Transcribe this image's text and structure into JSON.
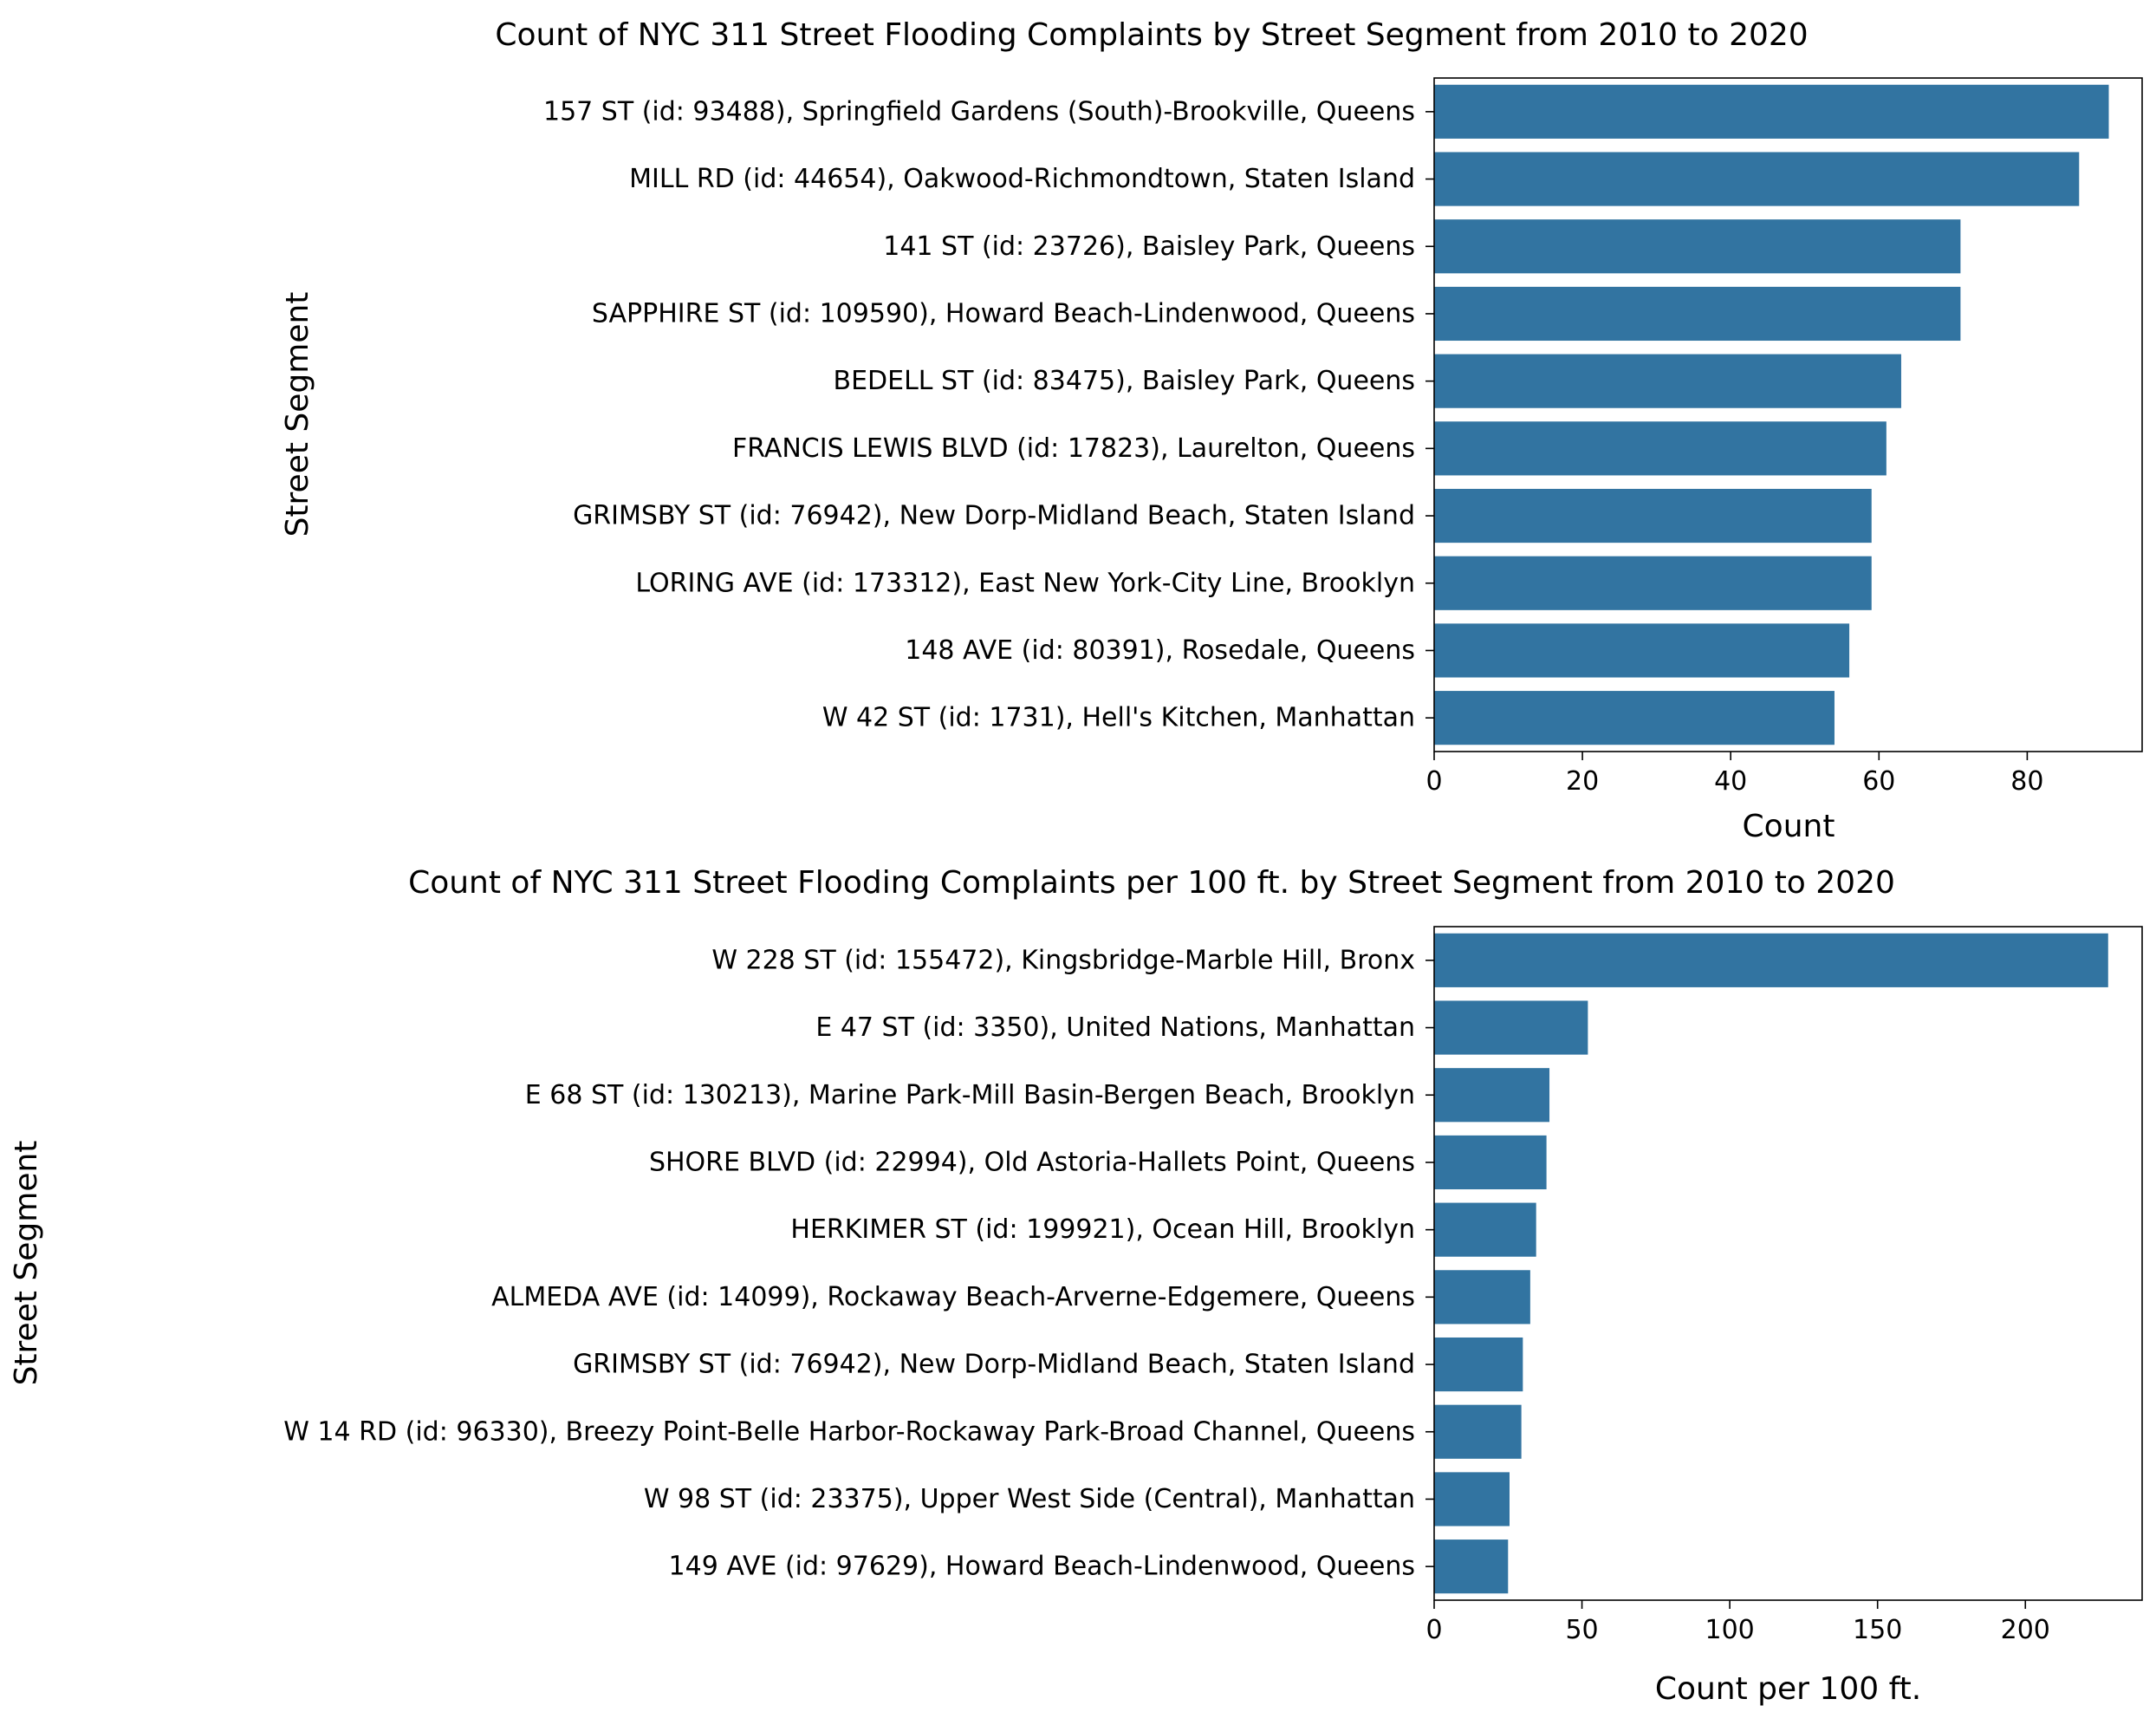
{
  "chart_data": [
    {
      "type": "bar",
      "orientation": "horizontal",
      "title": "Count of NYC 311 Street Flooding Complaints by Street Segment from 2010 to 2020",
      "xlabel": "Count",
      "ylabel": "Street Segment",
      "xlim": [
        0,
        95.5
      ],
      "xticks": [
        0,
        20,
        40,
        60,
        80
      ],
      "grid": false,
      "color": "#3274a1",
      "categories": [
        "157 ST (id: 93488), Springfield Gardens (South)-Brookville, Queens",
        "MILL RD (id: 44654), Oakwood-Richmondtown, Staten Island",
        "141 ST (id: 23726), Baisley Park, Queens",
        "SAPPHIRE ST (id: 109590), Howard Beach-Lindenwood, Queens",
        "BEDELL ST (id: 83475), Baisley Park, Queens",
        "FRANCIS LEWIS BLVD (id: 17823), Laurelton, Queens",
        "GRIMSBY ST (id: 76942), New Dorp-Midland Beach, Staten Island",
        "LORING AVE (id: 173312), East New York-City Line, Brooklyn",
        "148 AVE (id: 80391), Rosedale, Queens",
        "W  42 ST (id: 1731), Hell's Kitchen, Manhattan"
      ],
      "values": [
        91,
        87,
        71,
        71,
        63,
        61,
        59,
        59,
        56,
        54
      ]
    },
    {
      "type": "bar",
      "orientation": "horizontal",
      "title": "Count of NYC 311 Street Flooding Complaints per 100 ft. by Street Segment from 2010 to 2020",
      "xlabel": "Count per 100 ft.",
      "ylabel": "Street Segment",
      "xlim": [
        0,
        239.5
      ],
      "xticks": [
        0,
        50,
        100,
        150,
        200
      ],
      "grid": false,
      "color": "#3274a1",
      "categories": [
        "W  228 ST (id: 155472), Kingsbridge-Marble Hill, Bronx",
        "E  47 ST (id: 3350), United Nations, Manhattan",
        "E  68 ST (id: 130213), Marine Park-Mill Basin-Bergen Beach, Brooklyn",
        "SHORE BLVD (id: 22994), Old Astoria-Hallets Point, Queens",
        "HERKIMER ST (id: 199921), Ocean Hill, Brooklyn",
        "ALMEDA AVE (id: 14099), Rockaway Beach-Arverne-Edgemere, Queens",
        "GRIMSBY ST (id: 76942), New Dorp-Midland Beach, Staten Island",
        "W  14 RD (id: 96330), Breezy Point-Belle Harbor-Rockaway Park-Broad Channel, Queens",
        "W  98 ST (id: 23375), Upper West Side (Central), Manhattan",
        "149 AVE (id: 97629), Howard Beach-Lindenwood, Queens"
      ],
      "values": [
        228,
        52,
        39,
        38,
        34.5,
        32.5,
        30,
        29.5,
        25.5,
        25
      ]
    }
  ]
}
